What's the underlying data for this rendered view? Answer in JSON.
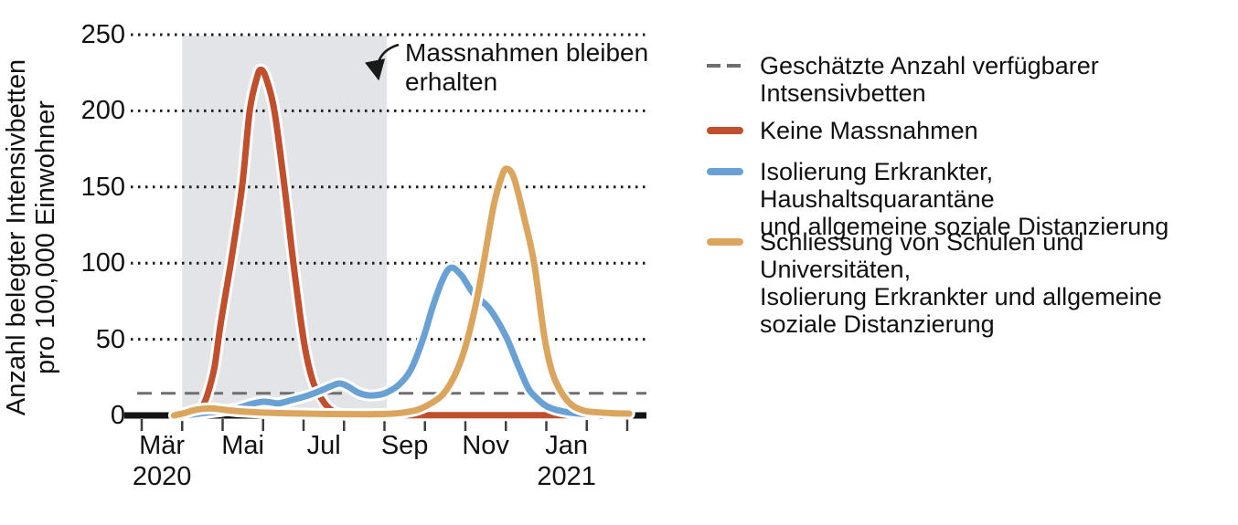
{
  "chart_data": {
    "type": "line",
    "title": "",
    "ylabel_lines": [
      "Anzahl belegter Intensivbetten",
      "pro 100,000 Einwohner"
    ],
    "x_unit": "months_since_2020-03-01",
    "xlim_months": [
      0,
      12
    ],
    "ylim": [
      0,
      250
    ],
    "grid": "horizontal dotted lines at each y tick",
    "legend_position": "right",
    "y_ticks": [
      0,
      50,
      100,
      150,
      200,
      250
    ],
    "x_month_labels": [
      {
        "text": "Mär",
        "m": 0.5,
        "year": "2020"
      },
      {
        "text": "Mai",
        "m": 2.5
      },
      {
        "text": "Jul",
        "m": 4.5
      },
      {
        "text": "Sep",
        "m": 6.5
      },
      {
        "text": "Nov",
        "m": 8.5
      },
      {
        "text": "Jan",
        "m": 10.5,
        "year": "2021"
      }
    ],
    "shaded_region": {
      "from_month": 1.0,
      "to_month": 6.06,
      "color": "#e2e4e7",
      "label_lines": [
        "Massnahmen bleiben",
        "erhalten"
      ]
    },
    "capacity_line": {
      "value": 14.5,
      "color": "#6e6e6e",
      "style": "dashed",
      "label": "Geschätzte Anzahl verfügbarer Intsensivbetten"
    },
    "series": [
      {
        "name": "Keine Massnahmen",
        "color": "#bf4f2d",
        "points": [
          [
            0.85,
            0
          ],
          [
            1.1,
            0.5
          ],
          [
            1.35,
            2
          ],
          [
            1.5,
            6
          ],
          [
            1.63,
            14
          ],
          [
            1.8,
            32
          ],
          [
            1.95,
            60
          ],
          [
            2.2,
            100
          ],
          [
            2.48,
            150
          ],
          [
            2.67,
            200
          ],
          [
            2.85,
            222
          ],
          [
            2.95,
            227
          ],
          [
            3.08,
            221
          ],
          [
            3.28,
            200
          ],
          [
            3.53,
            150
          ],
          [
            3.75,
            100
          ],
          [
            4.0,
            50
          ],
          [
            4.2,
            25
          ],
          [
            4.4,
            13
          ],
          [
            4.62,
            5
          ],
          [
            4.9,
            1
          ],
          [
            5.2,
            0.3
          ],
          [
            6,
            0.2
          ],
          [
            7,
            0.2
          ],
          [
            8,
            0.2
          ],
          [
            9,
            0.2
          ],
          [
            10,
            0.2
          ],
          [
            10.6,
            0.2
          ]
        ]
      },
      {
        "name": "Isolierung Erkrankter, Haushaltsquarantäne und allgemeine soziale Distanzierung",
        "color": "#6aa1d5",
        "points": [
          [
            1.15,
            0.3
          ],
          [
            1.5,
            1.5
          ],
          [
            2.0,
            3
          ],
          [
            2.4,
            5
          ],
          [
            2.7,
            7.5
          ],
          [
            3.0,
            9
          ],
          [
            3.2,
            8.5
          ],
          [
            3.4,
            8
          ],
          [
            3.7,
            10
          ],
          [
            4.1,
            13
          ],
          [
            4.4,
            16
          ],
          [
            4.7,
            19.5
          ],
          [
            4.9,
            21
          ],
          [
            5.1,
            19
          ],
          [
            5.35,
            15
          ],
          [
            5.6,
            13.2
          ],
          [
            5.85,
            13.5
          ],
          [
            6.05,
            15
          ],
          [
            6.35,
            20
          ],
          [
            6.65,
            30
          ],
          [
            6.95,
            50
          ],
          [
            7.2,
            72
          ],
          [
            7.45,
            90
          ],
          [
            7.65,
            97
          ],
          [
            7.9,
            92
          ],
          [
            8.2,
            80
          ],
          [
            8.6,
            70
          ],
          [
            9.0,
            52
          ],
          [
            9.3,
            33
          ],
          [
            9.55,
            18
          ],
          [
            9.7,
            13
          ],
          [
            9.95,
            7
          ],
          [
            10.2,
            4
          ],
          [
            10.55,
            2
          ],
          [
            10.9,
            1
          ],
          [
            11.2,
            0.5
          ]
        ]
      },
      {
        "name": "Schliessung von Schulen und Universitäten, Isolierung Erkrankter und allgemeine soziale Distanzierung",
        "color": "#dba55e",
        "points": [
          [
            0.8,
            0
          ],
          [
            1.05,
            1.5
          ],
          [
            1.3,
            3.5
          ],
          [
            1.55,
            4.5
          ],
          [
            1.8,
            4.5
          ],
          [
            2.1,
            3.5
          ],
          [
            2.5,
            2.5
          ],
          [
            2.9,
            2
          ],
          [
            3.4,
            1.5
          ],
          [
            4.0,
            1.2
          ],
          [
            4.8,
            0.9
          ],
          [
            5.6,
            0.8
          ],
          [
            6.1,
            1
          ],
          [
            6.5,
            2
          ],
          [
            6.85,
            4
          ],
          [
            7.15,
            8
          ],
          [
            7.45,
            14
          ],
          [
            7.75,
            27
          ],
          [
            8.0,
            45
          ],
          [
            8.25,
            72
          ],
          [
            8.45,
            100
          ],
          [
            8.7,
            138
          ],
          [
            8.9,
            157
          ],
          [
            9.02,
            162
          ],
          [
            9.2,
            156
          ],
          [
            9.45,
            130
          ],
          [
            9.7,
            100
          ],
          [
            9.95,
            52
          ],
          [
            10.15,
            28
          ],
          [
            10.4,
            14
          ],
          [
            10.65,
            6.5
          ],
          [
            10.95,
            3
          ],
          [
            11.3,
            2
          ],
          [
            11.7,
            1.4
          ],
          [
            12.05,
            1.2
          ]
        ]
      }
    ]
  },
  "legend": {
    "items": [
      {
        "swatch": "dashed-gray-line",
        "color": "#6e6e6e",
        "lines": [
          "Geschätzte Anzahl verfügbarer",
          "Intsensivbetten"
        ]
      },
      {
        "swatch": "red-line",
        "color": "#bf4f2d",
        "lines": [
          "Keine Massnahmen"
        ]
      },
      {
        "swatch": "blue-line",
        "color": "#6aa1d5",
        "lines": [
          "Isolierung Erkrankter, Haushaltsquarantäne",
          "und allgemeine soziale Distanzierung"
        ]
      },
      {
        "swatch": "orange-line",
        "color": "#dba55e",
        "lines": [
          "Schliessung von Schulen und Universitäten,",
          "Isolierung Erkrankter und allgemeine",
          "soziale Distanzierung"
        ]
      }
    ]
  }
}
